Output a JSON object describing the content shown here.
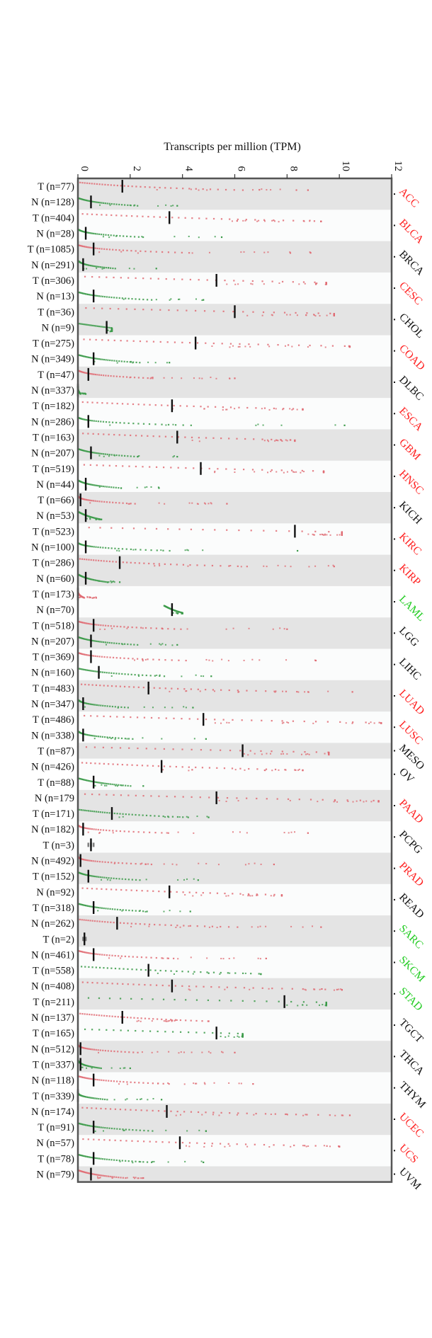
{
  "colors": {
    "tumor": "#e06b73",
    "normal": "#3a9a48",
    "neutral": "#808080",
    "band": "#e4e4e4",
    "bg": "#fbfcfc",
    "median": "#111111",
    "label_red": "#ff2020",
    "label_green": "#22cc22",
    "label_black": "#111111"
  },
  "chart_data": {
    "type": "scatter",
    "title": "Transcripts per million (TPM)",
    "xlabel": "Transcripts per million (TPM)",
    "xlim": [
      0,
      12
    ],
    "xticks": [
      0,
      2,
      4,
      6,
      8,
      10,
      12
    ],
    "xtick_labels": [
      "0",
      "2",
      "4",
      "6",
      "8",
      "10",
      "12"
    ],
    "rows": [
      {
        "label": "T (n=77)",
        "kind": "T",
        "median": 1.7,
        "max": 8.8
      },
      {
        "label": "N (n=128)",
        "kind": "N",
        "median": 0.5,
        "max": 3.8
      },
      {
        "label": "T (n=404)",
        "kind": "T",
        "median": 3.5,
        "max": 9.3
      },
      {
        "label": "N (n=28)",
        "kind": "N",
        "median": 0.3,
        "max": 5.5
      },
      {
        "label": "T (n=1085)",
        "kind": "T",
        "median": 0.6,
        "max": 8.9
      },
      {
        "label": "N (n=291)",
        "kind": "N",
        "median": 0.2,
        "max": 3.0
      },
      {
        "label": "T (n=306)",
        "kind": "T",
        "median": 5.3,
        "max": 9.5
      },
      {
        "label": "N (n=13)",
        "kind": "N",
        "median": 0.6,
        "max": 4.8
      },
      {
        "label": "T (n=36)",
        "kind": "T",
        "median": 6.0,
        "max": 9.8
      },
      {
        "label": "N (n=9)",
        "kind": "N",
        "median": 1.1,
        "max": 1.3
      },
      {
        "label": "T (n=275)",
        "kind": "T",
        "median": 4.5,
        "max": 10.4
      },
      {
        "label": "N (n=349)",
        "kind": "N",
        "median": 0.6,
        "max": 3.5
      },
      {
        "label": "T (n=47)",
        "kind": "T",
        "median": 0.4,
        "max": 6.0
      },
      {
        "label": "N (n=337)",
        "kind": "N",
        "median": 0.0,
        "max": 0.3
      },
      {
        "label": "T (n=182)",
        "kind": "T",
        "median": 3.6,
        "max": 8.6
      },
      {
        "label": "N (n=286)",
        "kind": "N",
        "median": 0.4,
        "max": 10.2
      },
      {
        "label": "T (n=163)",
        "kind": "T",
        "median": 3.8,
        "max": 8.3
      },
      {
        "label": "N (n=207)",
        "kind": "N",
        "median": 0.5,
        "max": 3.8
      },
      {
        "label": "T (n=519)",
        "kind": "T",
        "median": 4.7,
        "max": 9.4
      },
      {
        "label": "N (n=44)",
        "kind": "N",
        "median": 0.3,
        "max": 3.1
      },
      {
        "label": "T (n=66)",
        "kind": "T",
        "median": 0.1,
        "max": 5.7
      },
      {
        "label": "N (n=53)",
        "kind": "N",
        "median": 0.3,
        "max": 0.9
      },
      {
        "label": "T (n=523)",
        "kind": "T",
        "median": 8.3,
        "max": 10.1
      },
      {
        "label": "N (n=100)",
        "kind": "N",
        "median": 0.3,
        "max": 8.4
      },
      {
        "label": "T (n=286)",
        "kind": "T",
        "median": 1.6,
        "max": 9.8
      },
      {
        "label": "N (n=60)",
        "kind": "N",
        "median": 0.3,
        "max": 1.6
      },
      {
        "label": "T (n=173)",
        "kind": "T",
        "median": 0.0,
        "max": 0.7
      },
      {
        "label": "N (n=70)",
        "kind": "N",
        "min": 3.3,
        "median": 3.6,
        "max": 4.0
      },
      {
        "label": "T (n=518)",
        "kind": "T",
        "median": 0.6,
        "max": 8.0
      },
      {
        "label": "N (n=207)",
        "kind": "N",
        "median": 0.5,
        "max": 3.8
      },
      {
        "label": "T (n=369)",
        "kind": "T",
        "median": 0.5,
        "max": 9.1
      },
      {
        "label": "N (n=160)",
        "kind": "N",
        "median": 0.8,
        "max": 5.1
      },
      {
        "label": "T (n=483)",
        "kind": "T",
        "median": 2.7,
        "max": 10.5
      },
      {
        "label": "N (n=347)",
        "kind": "N",
        "median": 0.2,
        "max": 4.4
      },
      {
        "label": "T (n=486)",
        "kind": "T",
        "median": 4.8,
        "max": 11.6
      },
      {
        "label": "N (n=338)",
        "kind": "N",
        "median": 0.2,
        "max": 4.9
      },
      {
        "label": "T (n=87)",
        "kind": "T",
        "median": 6.3,
        "max": 9.6
      },
      {
        "label": "N (n=426)",
        "kind": "T",
        "median": 3.2,
        "max": 8.6
      },
      {
        "label": "T (n=88)",
        "kind": "N",
        "median": 0.6,
        "max": 2.5
      },
      {
        "label": "N (n=179",
        "kind": "T",
        "median": 5.3,
        "max": 11.5
      },
      {
        "label": "T (n=171)",
        "kind": "N",
        "median": 1.3,
        "max": 5.0
      },
      {
        "label": "N (n=182)",
        "kind": "T",
        "median": 0.2,
        "max": 8.8
      },
      {
        "label": "T (n=3)",
        "kind": "X",
        "min": 0.4,
        "median": 0.5,
        "max": 0.6
      },
      {
        "label": "N (n=492)",
        "kind": "T",
        "median": 0.1,
        "max": 7.5
      },
      {
        "label": "T (n=152)",
        "kind": "N",
        "median": 0.4,
        "max": 4.6
      },
      {
        "label": "N (n=92)",
        "kind": "T",
        "median": 3.5,
        "max": 7.8
      },
      {
        "label": "T (n=318)",
        "kind": "N",
        "median": 0.6,
        "max": 4.3
      },
      {
        "label": "N (n=262)",
        "kind": "T",
        "median": 1.5,
        "max": 9.3
      },
      {
        "label": "T (n=2)",
        "kind": "X",
        "min": 0.2,
        "median": 0.25,
        "max": 0.3
      },
      {
        "label": "N (n=461)",
        "kind": "T",
        "median": 0.6,
        "max": 7.2
      },
      {
        "label": "T (n=558)",
        "kind": "N",
        "median": 2.7,
        "max": 7.0
      },
      {
        "label": "N (n=408)",
        "kind": "T",
        "median": 3.6,
        "max": 10.1
      },
      {
        "label": "T (n=211)",
        "kind": "N",
        "median": 7.9,
        "max": 9.5
      },
      {
        "label": "N (n=137)",
        "kind": "T",
        "median": 1.7,
        "max": 5.0
      },
      {
        "label": "T (n=165)",
        "kind": "N",
        "median": 5.3,
        "max": 6.3
      },
      {
        "label": "N (n=512)",
        "kind": "T",
        "median": 0.1,
        "max": 6.0
      },
      {
        "label": "T (n=337)",
        "kind": "N",
        "median": 0.1,
        "max": 2.0
      },
      {
        "label": "N (n=118)",
        "kind": "T",
        "median": 0.6,
        "max": 6.7
      },
      {
        "label": "T (n=339)",
        "kind": "N",
        "median": 0.0,
        "max": 3.2
      },
      {
        "label": "N (n=174)",
        "kind": "T",
        "median": 3.4,
        "max": 10.4
      },
      {
        "label": "T (n=91)",
        "kind": "N",
        "median": 0.6,
        "max": 4.9
      },
      {
        "label": "N (n=57)",
        "kind": "T",
        "median": 3.9,
        "max": 10.0
      },
      {
        "label": "T (n=78)",
        "kind": "N",
        "median": 0.6,
        "max": 4.8
      },
      {
        "label": "N (n=79)",
        "kind": "T",
        "median": 0.5,
        "max": 2.5
      }
    ],
    "cancers": [
      {
        "name": "ACC",
        "color": "red",
        "rows": [
          0,
          1
        ]
      },
      {
        "name": "BLCA",
        "color": "red",
        "rows": [
          2,
          3
        ]
      },
      {
        "name": "BRCA",
        "color": "black",
        "rows": [
          4,
          5
        ]
      },
      {
        "name": "CESC",
        "color": "red",
        "rows": [
          6,
          7
        ]
      },
      {
        "name": "CHOL",
        "color": "black",
        "rows": [
          8,
          9
        ]
      },
      {
        "name": "COAD",
        "color": "red",
        "rows": [
          10,
          11
        ]
      },
      {
        "name": "DLBC",
        "color": "black",
        "rows": [
          12,
          13
        ]
      },
      {
        "name": "ESCA",
        "color": "red",
        "rows": [
          14,
          15
        ]
      },
      {
        "name": "GBM",
        "color": "red",
        "rows": [
          16,
          17
        ]
      },
      {
        "name": "HNSC",
        "color": "red",
        "rows": [
          18,
          19
        ]
      },
      {
        "name": "KICH",
        "color": "black",
        "rows": [
          20,
          21
        ]
      },
      {
        "name": "KIRC",
        "color": "red",
        "rows": [
          22,
          23
        ]
      },
      {
        "name": "KIRP",
        "color": "red",
        "rows": [
          24,
          25
        ]
      },
      {
        "name": "LAML",
        "color": "green",
        "rows": [
          26,
          27
        ]
      },
      {
        "name": "LGG",
        "color": "black",
        "rows": [
          28,
          29
        ]
      },
      {
        "name": "LIHC",
        "color": "black",
        "rows": [
          30,
          31
        ]
      },
      {
        "name": "LUAD",
        "color": "red",
        "rows": [
          32,
          33
        ]
      },
      {
        "name": "LUSC",
        "color": "red",
        "rows": [
          34,
          35
        ]
      },
      {
        "name": "MESO",
        "color": "black",
        "rows": [
          36
        ]
      },
      {
        "name": "OV",
        "color": "black",
        "rows": [
          37,
          38
        ]
      },
      {
        "name": "PAAD",
        "color": "red",
        "rows": [
          39,
          40
        ]
      },
      {
        "name": "PCPG",
        "color": "black",
        "rows": [
          41,
          42
        ]
      },
      {
        "name": "PRAD",
        "color": "red",
        "rows": [
          43,
          44
        ]
      },
      {
        "name": "READ",
        "color": "black",
        "rows": [
          45,
          46
        ]
      },
      {
        "name": "SARC",
        "color": "green",
        "rows": [
          47,
          48
        ]
      },
      {
        "name": "SKCM",
        "color": "green",
        "rows": [
          49,
          50
        ]
      },
      {
        "name": "STAD",
        "color": "green",
        "rows": [
          51,
          52
        ]
      },
      {
        "name": "TGCT",
        "color": "black",
        "rows": [
          53,
          54
        ]
      },
      {
        "name": "THCA",
        "color": "black",
        "rows": [
          55,
          56
        ]
      },
      {
        "name": "THYM",
        "color": "black",
        "rows": [
          57,
          58
        ]
      },
      {
        "name": "UCEC",
        "color": "red",
        "rows": [
          59,
          60
        ]
      },
      {
        "name": "UCS",
        "color": "red",
        "rows": [
          61,
          62
        ]
      },
      {
        "name": "UVM",
        "color": "black",
        "rows": [
          63
        ]
      }
    ]
  }
}
